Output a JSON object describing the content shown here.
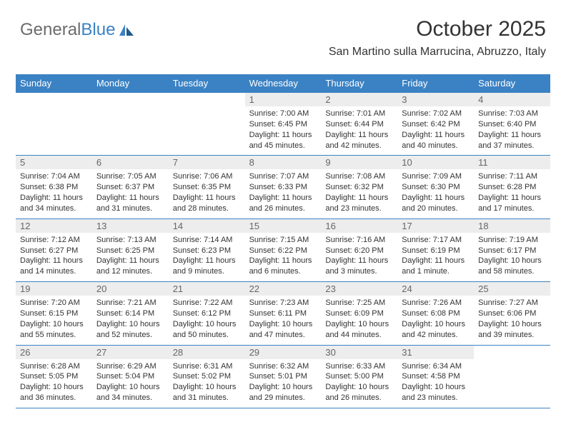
{
  "logo": {
    "text_general": "General",
    "text_blue": "Blue"
  },
  "header": {
    "title": "October 2025",
    "subtitle": "San Martino sulla Marrucina, Abruzzo, Italy"
  },
  "colors": {
    "accent": "#3b82c4",
    "header_text": "#ffffff",
    "day_number_bg": "#ededed",
    "day_number_text": "#666666",
    "body_text": "#333333",
    "logo_gray": "#6b6b6b",
    "background": "#ffffff"
  },
  "calendar": {
    "day_names": [
      "Sunday",
      "Monday",
      "Tuesday",
      "Wednesday",
      "Thursday",
      "Friday",
      "Saturday"
    ],
    "weeks": [
      [
        null,
        null,
        null,
        {
          "n": "1",
          "sunrise": "7:00 AM",
          "sunset": "6:45 PM",
          "daylight": "11 hours and 45 minutes."
        },
        {
          "n": "2",
          "sunrise": "7:01 AM",
          "sunset": "6:44 PM",
          "daylight": "11 hours and 42 minutes."
        },
        {
          "n": "3",
          "sunrise": "7:02 AM",
          "sunset": "6:42 PM",
          "daylight": "11 hours and 40 minutes."
        },
        {
          "n": "4",
          "sunrise": "7:03 AM",
          "sunset": "6:40 PM",
          "daylight": "11 hours and 37 minutes."
        }
      ],
      [
        {
          "n": "5",
          "sunrise": "7:04 AM",
          "sunset": "6:38 PM",
          "daylight": "11 hours and 34 minutes."
        },
        {
          "n": "6",
          "sunrise": "7:05 AM",
          "sunset": "6:37 PM",
          "daylight": "11 hours and 31 minutes."
        },
        {
          "n": "7",
          "sunrise": "7:06 AM",
          "sunset": "6:35 PM",
          "daylight": "11 hours and 28 minutes."
        },
        {
          "n": "8",
          "sunrise": "7:07 AM",
          "sunset": "6:33 PM",
          "daylight": "11 hours and 26 minutes."
        },
        {
          "n": "9",
          "sunrise": "7:08 AM",
          "sunset": "6:32 PM",
          "daylight": "11 hours and 23 minutes."
        },
        {
          "n": "10",
          "sunrise": "7:09 AM",
          "sunset": "6:30 PM",
          "daylight": "11 hours and 20 minutes."
        },
        {
          "n": "11",
          "sunrise": "7:11 AM",
          "sunset": "6:28 PM",
          "daylight": "11 hours and 17 minutes."
        }
      ],
      [
        {
          "n": "12",
          "sunrise": "7:12 AM",
          "sunset": "6:27 PM",
          "daylight": "11 hours and 14 minutes."
        },
        {
          "n": "13",
          "sunrise": "7:13 AM",
          "sunset": "6:25 PM",
          "daylight": "11 hours and 12 minutes."
        },
        {
          "n": "14",
          "sunrise": "7:14 AM",
          "sunset": "6:23 PM",
          "daylight": "11 hours and 9 minutes."
        },
        {
          "n": "15",
          "sunrise": "7:15 AM",
          "sunset": "6:22 PM",
          "daylight": "11 hours and 6 minutes."
        },
        {
          "n": "16",
          "sunrise": "7:16 AM",
          "sunset": "6:20 PM",
          "daylight": "11 hours and 3 minutes."
        },
        {
          "n": "17",
          "sunrise": "7:17 AM",
          "sunset": "6:19 PM",
          "daylight": "11 hours and 1 minute."
        },
        {
          "n": "18",
          "sunrise": "7:19 AM",
          "sunset": "6:17 PM",
          "daylight": "10 hours and 58 minutes."
        }
      ],
      [
        {
          "n": "19",
          "sunrise": "7:20 AM",
          "sunset": "6:15 PM",
          "daylight": "10 hours and 55 minutes."
        },
        {
          "n": "20",
          "sunrise": "7:21 AM",
          "sunset": "6:14 PM",
          "daylight": "10 hours and 52 minutes."
        },
        {
          "n": "21",
          "sunrise": "7:22 AM",
          "sunset": "6:12 PM",
          "daylight": "10 hours and 50 minutes."
        },
        {
          "n": "22",
          "sunrise": "7:23 AM",
          "sunset": "6:11 PM",
          "daylight": "10 hours and 47 minutes."
        },
        {
          "n": "23",
          "sunrise": "7:25 AM",
          "sunset": "6:09 PM",
          "daylight": "10 hours and 44 minutes."
        },
        {
          "n": "24",
          "sunrise": "7:26 AM",
          "sunset": "6:08 PM",
          "daylight": "10 hours and 42 minutes."
        },
        {
          "n": "25",
          "sunrise": "7:27 AM",
          "sunset": "6:06 PM",
          "daylight": "10 hours and 39 minutes."
        }
      ],
      [
        {
          "n": "26",
          "sunrise": "6:28 AM",
          "sunset": "5:05 PM",
          "daylight": "10 hours and 36 minutes."
        },
        {
          "n": "27",
          "sunrise": "6:29 AM",
          "sunset": "5:04 PM",
          "daylight": "10 hours and 34 minutes."
        },
        {
          "n": "28",
          "sunrise": "6:31 AM",
          "sunset": "5:02 PM",
          "daylight": "10 hours and 31 minutes."
        },
        {
          "n": "29",
          "sunrise": "6:32 AM",
          "sunset": "5:01 PM",
          "daylight": "10 hours and 29 minutes."
        },
        {
          "n": "30",
          "sunrise": "6:33 AM",
          "sunset": "5:00 PM",
          "daylight": "10 hours and 26 minutes."
        },
        {
          "n": "31",
          "sunrise": "6:34 AM",
          "sunset": "4:58 PM",
          "daylight": "10 hours and 23 minutes."
        },
        null
      ]
    ],
    "labels": {
      "sunrise": "Sunrise:",
      "sunset": "Sunset:",
      "daylight": "Daylight:"
    },
    "typography": {
      "title_fontsize": 30,
      "subtitle_fontsize": 16,
      "header_fontsize": 13,
      "daynum_fontsize": 13,
      "body_fontsize": 11
    }
  }
}
